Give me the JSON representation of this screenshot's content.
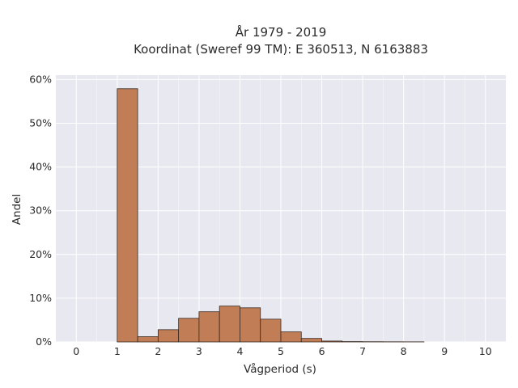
{
  "chart_data": {
    "type": "bar",
    "title": [
      "År 1979 - 2019",
      "Koordinat (Sweref 99 TM): E 360513, N 6163883"
    ],
    "xlabel": "Vågperiod (s)",
    "ylabel": "Andel",
    "xlim": [
      -0.5,
      10.5
    ],
    "ylim": [
      0,
      0.61
    ],
    "x_ticks": [
      0,
      1,
      2,
      3,
      4,
      5,
      6,
      7,
      8,
      9,
      10
    ],
    "y_ticks": [
      0,
      0.1,
      0.2,
      0.3,
      0.4,
      0.5,
      0.6
    ],
    "y_tick_labels": [
      "0%",
      "10%",
      "20%",
      "30%",
      "40%",
      "50%",
      "60%"
    ],
    "grid": true,
    "background_color": "#e8e8f0",
    "bar_color": "#c07d56",
    "bar_edge_color": "#3b2a20",
    "bin_width": 0.5,
    "bins": [
      {
        "start": 1.0,
        "value": 0.579
      },
      {
        "start": 1.5,
        "value": 0.012
      },
      {
        "start": 2.0,
        "value": 0.028
      },
      {
        "start": 2.5,
        "value": 0.054
      },
      {
        "start": 3.0,
        "value": 0.069
      },
      {
        "start": 3.5,
        "value": 0.082
      },
      {
        "start": 4.0,
        "value": 0.078
      },
      {
        "start": 4.5,
        "value": 0.052
      },
      {
        "start": 5.0,
        "value": 0.023
      },
      {
        "start": 5.5,
        "value": 0.008
      },
      {
        "start": 6.0,
        "value": 0.002
      },
      {
        "start": 6.5,
        "value": 0.0008
      },
      {
        "start": 7.0,
        "value": 0.0005
      },
      {
        "start": 7.5,
        "value": 0.0003
      },
      {
        "start": 8.0,
        "value": 0.0002
      }
    ]
  }
}
